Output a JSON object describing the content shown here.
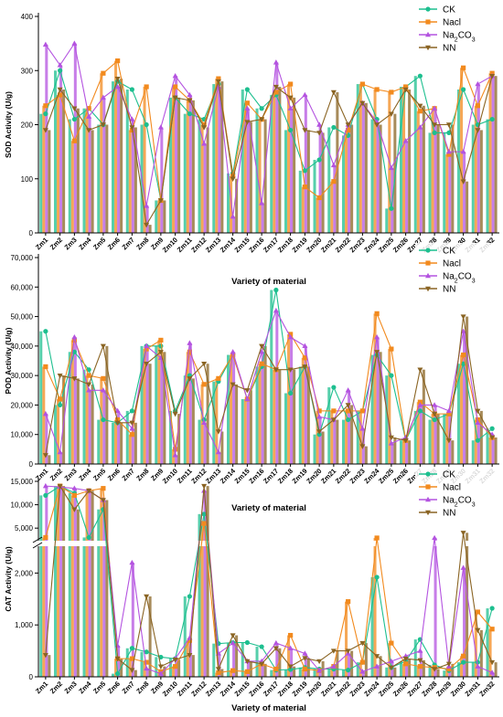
{
  "colors": {
    "CK": "#1dbf8f",
    "NaCl": "#f28a1e",
    "Na2CO3": "#b453e0",
    "NN": "#8a6423"
  },
  "chart_data": [
    {
      "type": "bar+line",
      "ylabel": "SOD Activity (U/g)",
      "xlabel": "Variety of material",
      "ylim": [
        0,
        400
      ],
      "yticks": [
        0,
        100,
        200,
        300,
        400
      ],
      "categories": [
        "Zm1",
        "Zm2",
        "Zm3",
        "Zm4",
        "Zm5",
        "Zm6",
        "Zm7",
        "Zm8",
        "Zm9",
        "Zm10",
        "Zm11",
        "Zm12",
        "Zm13",
        "Zm14",
        "Zm15",
        "Zm16",
        "Zm17",
        "Zm18",
        "Zm19",
        "Zm20",
        "Zm21",
        "Zm22",
        "Zm23",
        "Zm24",
        "Zm25",
        "Zm26",
        "Zm27",
        "Zm28",
        "Zm29",
        "Zm30",
        "Zm31",
        "Zm32"
      ],
      "legend_position": "top-right",
      "series": [
        {
          "name": "CK",
          "key": "CK",
          "values": [
            220,
            300,
            210,
            230,
            200,
            280,
            265,
            200,
            60,
            250,
            220,
            210,
            275,
            110,
            265,
            230,
            255,
            190,
            115,
            135,
            195,
            180,
            275,
            210,
            45,
            270,
            290,
            185,
            185,
            265,
            200,
            210
          ]
        },
        {
          "name": "Nacl",
          "key": "NaCl",
          "values": [
            235,
            255,
            170,
            230,
            295,
            318,
            190,
            270,
            60,
            270,
            245,
            200,
            285,
            105,
            240,
            210,
            260,
            275,
            85,
            65,
            95,
            190,
            275,
            265,
            260,
            270,
            225,
            230,
            145,
            305,
            235,
            295
          ]
        },
        {
          "name": "Na2CO3",
          "key": "Na2CO3",
          "values": [
            348,
            310,
            350,
            215,
            250,
            270,
            210,
            50,
            195,
            290,
            255,
            165,
            270,
            30,
            230,
            55,
            315,
            230,
            255,
            200,
            125,
            200,
            240,
            205,
            120,
            170,
            195,
            230,
            150,
            150,
            275,
            290
          ]
        },
        {
          "name": "NN",
          "key": "NN",
          "values": [
            190,
            265,
            230,
            190,
            200,
            285,
            195,
            15,
            60,
            250,
            245,
            195,
            280,
            100,
            205,
            210,
            270,
            250,
            190,
            185,
            260,
            200,
            240,
            200,
            220,
            265,
            235,
            200,
            200,
            95,
            190,
            290
          ]
        }
      ]
    },
    {
      "type": "bar+line",
      "ylabel": "POD Activity (U/g)",
      "xlabel": "Variety of material",
      "ylim": [
        0,
        70000
      ],
      "yticks": [
        0,
        10000,
        20000,
        30000,
        40000,
        50000,
        60000,
        70000
      ],
      "ytick_labels": [
        "0",
        "10,000",
        "20,000",
        "30,000",
        "40,000",
        "50,000",
        "60,000",
        "70,000"
      ],
      "categories": [
        "Zm1",
        "Zm2",
        "Zm3",
        "Zm4",
        "Zm5",
        "Zm6",
        "Zm7",
        "Zm8",
        "Zm9",
        "Zm10",
        "Zm11",
        "Zm12",
        "Zm13",
        "Zm14",
        "Zm15",
        "Zm16",
        "Zm17",
        "Zm18",
        "Zm19",
        "Zm20",
        "Zm21",
        "Zm22",
        "Zm23",
        "Zm24",
        "Zm25",
        "Zm26",
        "Zm27",
        "Zm28",
        "Zm29",
        "Zm30",
        "Zm31",
        "Zm32"
      ],
      "legend_position": "top-right",
      "series": [
        {
          "name": "CK",
          "key": "CK",
          "values": [
            45000,
            20000,
            38000,
            32000,
            15000,
            14000,
            18000,
            40000,
            40000,
            18000,
            30000,
            15000,
            28000,
            37000,
            22000,
            33000,
            59000,
            24000,
            33000,
            10000,
            26000,
            15000,
            18000,
            37000,
            30000,
            8000,
            18000,
            15000,
            17000,
            34000,
            8000,
            12000
          ]
        },
        {
          "name": "Nacl",
          "key": "NaCl",
          "values": [
            33000,
            22000,
            42000,
            30000,
            29000,
            15000,
            10000,
            39000,
            42000,
            5000,
            38000,
            27000,
            29000,
            37000,
            22000,
            34000,
            32000,
            44000,
            36000,
            18000,
            18000,
            18000,
            18000,
            51000,
            39000,
            8000,
            21000,
            17000,
            17000,
            37000,
            15000,
            9000
          ]
        },
        {
          "name": "Na2CO3",
          "key": "Na2CO3",
          "values": [
            17000,
            4000,
            43000,
            25000,
            25000,
            18000,
            12000,
            40000,
            36000,
            3000,
            41000,
            14000,
            4000,
            38000,
            22000,
            38000,
            52000,
            43000,
            40000,
            16000,
            15000,
            25000,
            12000,
            43000,
            7000,
            9000,
            20000,
            20000,
            18000,
            45000,
            14000,
            10000
          ]
        },
        {
          "name": "NN",
          "key": "NN",
          "values": [
            3000,
            30000,
            29000,
            27000,
            40000,
            14000,
            14000,
            34000,
            38000,
            17000,
            29000,
            34000,
            11000,
            27000,
            25000,
            40000,
            32000,
            32000,
            33000,
            11000,
            15000,
            20000,
            6000,
            38000,
            9000,
            8000,
            32000,
            17000,
            8000,
            50000,
            18000,
            9000
          ]
        }
      ]
    },
    {
      "type": "bar+line",
      "ylabel": "CAT Activity (U/g)",
      "xlabel": "Variety of material",
      "y_axis_break": {
        "lower": [
          0,
          2500
        ],
        "upper": [
          2500,
          15000
        ]
      },
      "yticks": [
        0,
        1000,
        2000,
        5000,
        10000,
        15000
      ],
      "ytick_labels": [
        "0",
        "1,000",
        "2,000",
        "5,000",
        "10,000",
        "15,000"
      ],
      "categories": [
        "Zm1",
        "Zm2",
        "Zm3",
        "Zm4",
        "Zm5",
        "Zm6",
        "Zm7",
        "Zm8",
        "Zm9",
        "Zm10",
        "Zm11",
        "Zm12",
        "Zm13",
        "Zm14",
        "Zm15",
        "Zm16",
        "Zm17",
        "Zm18",
        "Zm19",
        "Zm20",
        "Zm21",
        "Zm22",
        "Zm23",
        "Zm24",
        "Zm25",
        "Zm26",
        "Zm27",
        "Zm28",
        "Zm29",
        "Zm30",
        "Zm31",
        "Zm32"
      ],
      "legend_position": "top-right",
      "series": [
        {
          "name": "CK",
          "key": "CK",
          "values": [
            12000,
            14000,
            12500,
            3000,
            9000,
            60,
            550,
            480,
            380,
            350,
            1550,
            8000,
            640,
            660,
            660,
            580,
            130,
            140,
            180,
            150,
            150,
            130,
            280,
            1920,
            180,
            300,
            720,
            230,
            120,
            280,
            280,
            1320
          ]
        },
        {
          "name": "Nacl",
          "key": "NaCl",
          "values": [
            3000,
            14000,
            12000,
            13000,
            13500,
            350,
            350,
            280,
            100,
            200,
            700,
            6000,
            80,
            120,
            100,
            250,
            150,
            800,
            150,
            120,
            200,
            1450,
            280,
            2900,
            650,
            250,
            200,
            180,
            150,
            400,
            1250,
            920
          ]
        },
        {
          "name": "Na2CO3",
          "key": "Na2CO3",
          "values": [
            14000,
            13800,
            13500,
            13000,
            11000,
            600,
            2200,
            160,
            60,
            350,
            750,
            13000,
            450,
            650,
            300,
            300,
            650,
            550,
            450,
            120,
            200,
            450,
            100,
            200,
            300,
            400,
            500,
            2900,
            200,
            2100,
            200,
            80
          ]
        },
        {
          "name": "NN",
          "key": "NN",
          "values": [
            420,
            14000,
            9000,
            13000,
            11000,
            350,
            130,
            1550,
            200,
            330,
            420,
            14000,
            150,
            800,
            300,
            250,
            550,
            200,
            360,
            300,
            500,
            500,
            650,
            400,
            180,
            350,
            320,
            150,
            250,
            4000,
            900,
            280
          ]
        }
      ]
    }
  ]
}
